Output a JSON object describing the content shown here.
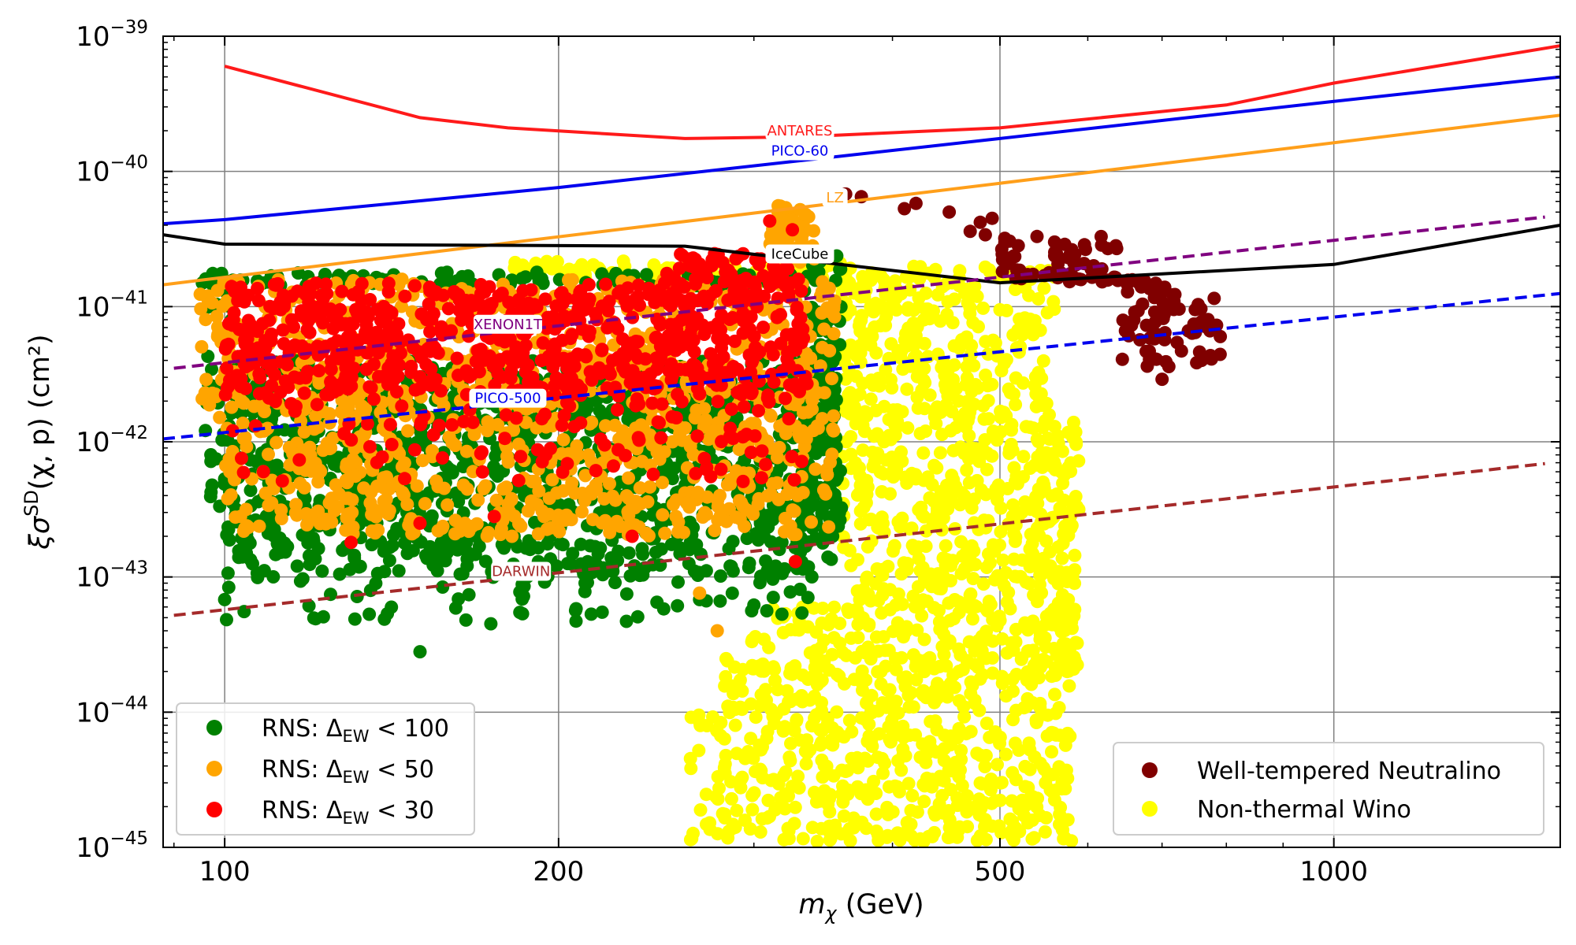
{
  "chart_data": {
    "type": "scatter",
    "xscale": "log",
    "yscale": "log",
    "xlim": [
      88,
      1600
    ],
    "ylim_exponents": [
      -45,
      -39
    ],
    "x_ticks": [
      {
        "value": 100,
        "label": "100"
      },
      {
        "value": 200,
        "label": "200"
      },
      {
        "value": 500,
        "label": "500"
      },
      {
        "value": 1000,
        "label": "1000"
      }
    ],
    "y_ticks": [
      {
        "exp": -39,
        "base": "10",
        "sup": "−39"
      },
      {
        "exp": -40,
        "base": "10",
        "sup": "−40"
      },
      {
        "exp": -41,
        "base": "10",
        "sup": "−41"
      },
      {
        "exp": -42,
        "base": "10",
        "sup": "−42"
      },
      {
        "exp": -43,
        "base": "10",
        "sup": "−43"
      },
      {
        "exp": -44,
        "base": "10",
        "sup": "−44"
      },
      {
        "exp": -45,
        "base": "10",
        "sup": "−45"
      }
    ],
    "xlabel": {
      "symbol": "m",
      "sub": "χ",
      "unit": " (GeV)"
    },
    "ylabel": {
      "prefix": "ξσ",
      "sup": "SD",
      "suffix": "(χ, p) (cm²)"
    },
    "grid": true,
    "limit_curves": [
      {
        "name": "ANTARES",
        "color": "#ff1a1a",
        "dash": false,
        "points": [
          [
            100,
            6e-40
          ],
          [
            150,
            2.5e-40
          ],
          [
            180,
            2.1e-40
          ],
          [
            260,
            1.75e-40
          ],
          [
            330,
            1.8e-40
          ],
          [
            500,
            2.1e-40
          ],
          [
            800,
            3.1e-40
          ],
          [
            1000,
            4.5e-40
          ],
          [
            1600,
            8.5e-40
          ]
        ],
        "label_at": 330,
        "label_y": 2e-40
      },
      {
        "name": "PICO-60",
        "color": "#0000ee",
        "dash": false,
        "points": [
          [
            88,
            4.1e-41
          ],
          [
            100,
            4.4e-41
          ],
          [
            200,
            7.6e-41
          ],
          [
            500,
            1.75e-40
          ],
          [
            1000,
            3.3e-40
          ],
          [
            1600,
            5e-40
          ]
        ],
        "label_at": 330,
        "label_y": 1.42e-40
      },
      {
        "name": "LZ",
        "color": "#ff9f1a",
        "dash": false,
        "points": [
          [
            88,
            1.45e-41
          ],
          [
            1600,
            2.6e-40
          ]
        ],
        "label_at": 355,
        "label_y": 6.4e-41
      },
      {
        "name": "IceCube",
        "color": "#000000",
        "dash": false,
        "points": [
          [
            88,
            3.4e-41
          ],
          [
            100,
            2.9e-41
          ],
          [
            260,
            2.8e-41
          ],
          [
            350,
            2.1e-41
          ],
          [
            500,
            1.5e-41
          ],
          [
            1000,
            2.05e-41
          ],
          [
            1600,
            4e-41
          ]
        ],
        "label_at": 330,
        "label_y": 2.45e-41
      },
      {
        "name": "XENON1T",
        "color": "#800080",
        "dash": true,
        "points": [
          [
            90,
            3.5e-42
          ],
          [
            1550,
            4.6e-41
          ]
        ],
        "label_at": 180,
        "label_y": 7.4e-42
      },
      {
        "name": "PICO-500",
        "color": "#0000ee",
        "dash": true,
        "points": [
          [
            88,
            1.05e-42
          ],
          [
            1600,
            1.25e-41
          ]
        ],
        "label_at": 180,
        "label_y": 2.1e-42
      },
      {
        "name": "DARWIN",
        "color": "#a52a2a",
        "dash": true,
        "points": [
          [
            90,
            5.2e-44
          ],
          [
            1550,
            6.9e-43
          ]
        ],
        "label_at": 185,
        "label_y": 1.1e-43
      }
    ],
    "series": [
      {
        "name": "Non-thermal Wino",
        "color": "#ffff00",
        "regions": [
          {
            "xmin": 280,
            "xmax": 580,
            "ymin": 1.1e-45,
            "ymax": 6e-44,
            "n": 700
          },
          {
            "xmin": 360,
            "xmax": 560,
            "ymin": 6e-44,
            "ymax": 2e-41,
            "n": 650
          },
          {
            "xmin": 540,
            "xmax": 590,
            "ymin": 2e-44,
            "ymax": 1.5e-42,
            "n": 120
          },
          {
            "xmin": 180,
            "xmax": 360,
            "ymin": 1.6e-41,
            "ymax": 2.2e-41,
            "n": 90
          },
          {
            "xmin": 262,
            "xmax": 285,
            "ymin": 1.1e-45,
            "ymax": 1e-44,
            "n": 30
          }
        ]
      },
      {
        "name": "RNS: ΔEW < 100",
        "color": "#008000",
        "regions": [
          {
            "xmin": 100,
            "xmax": 355,
            "ymin": 1e-43,
            "ymax": 4e-42,
            "n": 1200
          },
          {
            "xmin": 96,
            "xmax": 102,
            "ymin": 3e-43,
            "ymax": 1.6e-41,
            "n": 40
          },
          {
            "xmin": 330,
            "xmax": 360,
            "ymin": 2e-43,
            "ymax": 2.5e-41,
            "n": 120
          },
          {
            "xmin": 95,
            "xmax": 340,
            "ymin": 1.4e-41,
            "ymax": 1.8e-41,
            "n": 100
          },
          {
            "xmin": 100,
            "xmax": 340,
            "ymin": 4.5e-44,
            "ymax": 1e-43,
            "n": 60
          }
        ],
        "extra_points": [
          [
            150,
            2.8e-44
          ],
          [
            165,
            4.8e-44
          ],
          [
            135,
            5.3e-44
          ],
          [
            100,
            6.8e-44
          ],
          [
            318,
            5.3e-44
          ],
          [
            300,
            6.2e-44
          ],
          [
            268,
            6.8e-44
          ]
        ]
      },
      {
        "name": "RNS: ΔEW < 50",
        "color": "#ffa500",
        "regions": [
          {
            "xmin": 100,
            "xmax": 355,
            "ymin": 2e-43,
            "ymax": 1.6e-41,
            "n": 1100
          },
          {
            "xmin": 95,
            "xmax": 100,
            "ymin": 1.5e-42,
            "ymax": 1.6e-41,
            "n": 25
          },
          {
            "xmin": 310,
            "xmax": 340,
            "ymin": 2e-41,
            "ymax": 6e-41,
            "n": 50
          }
        ],
        "extra_points": [
          [
            96,
            2.3e-42
          ],
          [
            278,
            4e-44
          ],
          [
            268,
            7.6e-44
          ]
        ]
      },
      {
        "name": "RNS: ΔEW < 30",
        "color": "#ff0000",
        "regions": [
          {
            "xmin": 100,
            "xmax": 335,
            "ymin": 2.2e-42,
            "ymax": 1.5e-41,
            "n": 700
          },
          {
            "xmin": 100,
            "xmax": 335,
            "ymin": 5e-43,
            "ymax": 2.2e-42,
            "n": 110
          },
          {
            "xmin": 250,
            "xmax": 330,
            "ymin": 1.4e-41,
            "ymax": 2.5e-41,
            "n": 60
          }
        ],
        "extra_points": [
          [
            130,
            1.8e-43
          ],
          [
            150,
            2.5e-43
          ],
          [
            175,
            2.8e-43
          ],
          [
            233,
            2e-43
          ],
          [
            327,
            1.3e-43
          ],
          [
            310,
            4.3e-41
          ],
          [
            325,
            3.7e-41
          ]
        ]
      },
      {
        "name": "Well-tempered Neutralino",
        "color": "#800000",
        "regions": [
          {
            "xmin": 640,
            "xmax": 790,
            "ymin": 3.5e-42,
            "ymax": 1.6e-41,
            "n": 70
          },
          {
            "xmin": 500,
            "xmax": 640,
            "ymin": 1.5e-41,
            "ymax": 3.3e-41,
            "n": 60
          }
        ],
        "extra_points": [
          [
            363,
            6.8e-41
          ],
          [
            375,
            6.5e-41
          ],
          [
            410,
            5.3e-41
          ],
          [
            420,
            5.8e-41
          ],
          [
            450,
            5e-41
          ],
          [
            470,
            3.6e-41
          ],
          [
            480,
            4.2e-41
          ],
          [
            492,
            4.5e-41
          ],
          [
            485,
            3.4e-41
          ],
          [
            505,
            3.2e-41
          ],
          [
            540,
            3.3e-41
          ],
          [
            560,
            3e-41
          ],
          [
            580,
            2.6e-41
          ],
          [
            700,
            2.9e-42
          ],
          [
            710,
            3.6e-42
          ],
          [
            760,
            4e-42
          ],
          [
            780,
            1.15e-41
          ],
          [
            790,
            6e-42
          ],
          [
            750,
            9.5e-42
          ]
        ]
      }
    ],
    "legend_left": {
      "placement": "bottom-left",
      "entries": [
        {
          "name": "RNS: ΔEW < 100",
          "color": "#008000",
          "prefix": "RNS: Δ",
          "sub": "EW",
          "suffix": " < 100"
        },
        {
          "name": "RNS: ΔEW < 50",
          "color": "#ffa500",
          "prefix": "RNS: Δ",
          "sub": "EW",
          "suffix": " < 50"
        },
        {
          "name": "RNS: ΔEW < 30",
          "color": "#ff0000",
          "prefix": "RNS: Δ",
          "sub": "EW",
          "suffix": " < 30"
        }
      ]
    },
    "legend_right": {
      "placement": "bottom-right",
      "entries": [
        {
          "name": "Well-tempered Neutralino",
          "color": "#800000",
          "label": "Well-tempered Neutralino"
        },
        {
          "name": "Non-thermal Wino",
          "color": "#ffff00",
          "label": "Non-thermal Wino"
        }
      ]
    }
  }
}
